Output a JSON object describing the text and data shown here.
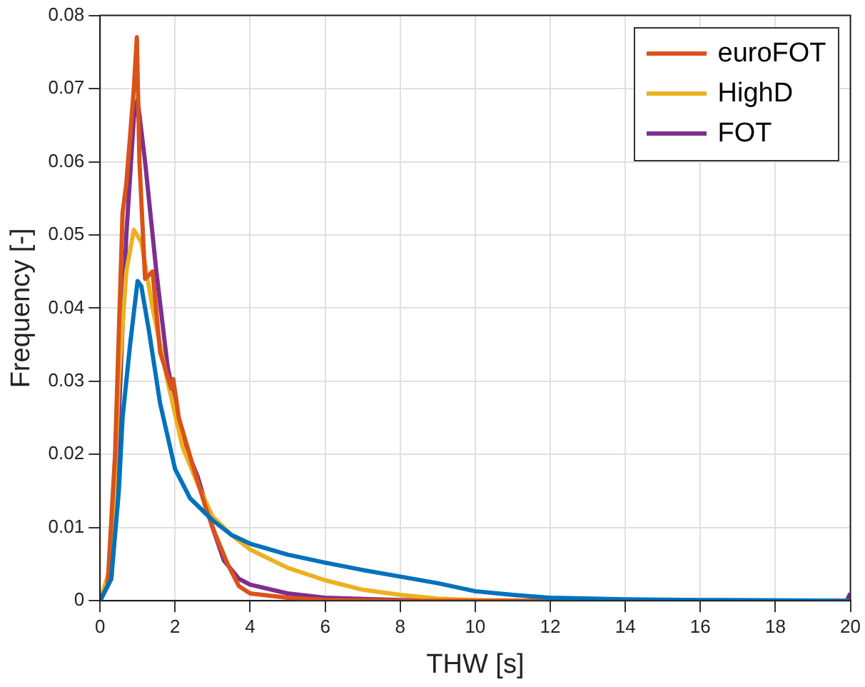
{
  "chart_data": {
    "type": "line",
    "xlabel": "THW [s]",
    "ylabel": "Frequency [-]",
    "xlim": [
      0,
      20
    ],
    "xticks": [
      0,
      2,
      4,
      6,
      8,
      10,
      12,
      14,
      16,
      18,
      20
    ],
    "ylim": [
      0,
      0.08
    ],
    "yticks": [
      0,
      0.01,
      0.02,
      0.03,
      0.04,
      0.05,
      0.06,
      0.07,
      0.08
    ],
    "grid": true,
    "legend": "top right",
    "marker": "none",
    "line_style": "solid",
    "series": [
      {
        "color": "#0072bd",
        "x": [
          0,
          0.3,
          0.5,
          0.6,
          0.8,
          1.0,
          1.1,
          1.3,
          1.6,
          2.0,
          2.4,
          3,
          3.5,
          4,
          5,
          6,
          7,
          8,
          9,
          10,
          11,
          12,
          14,
          16,
          20
        ],
        "values": [
          0,
          0.003,
          0.015,
          0.025,
          0.035,
          0.0437,
          0.043,
          0.037,
          0.027,
          0.018,
          0.014,
          0.011,
          0.009,
          0.0078,
          0.0063,
          0.0052,
          0.0042,
          0.0033,
          0.0024,
          0.0013,
          0.0008,
          0.0004,
          0.0002,
          0.0001,
          0
        ]
      },
      {
        "name": "euroFOT",
        "color": "#d95319",
        "x": [
          0,
          0.2,
          0.4,
          0.6,
          0.7,
          0.9,
          0.98,
          1.05,
          1.2,
          1.4,
          1.6,
          1.9,
          1.95,
          2.1,
          2.5,
          2.8,
          3,
          3.4,
          3.7,
          4,
          5,
          6,
          8,
          20
        ],
        "values": [
          0,
          0.002,
          0.02,
          0.053,
          0.057,
          0.07,
          0.077,
          0.06,
          0.044,
          0.045,
          0.034,
          0.029,
          0.0303,
          0.025,
          0.018,
          0.013,
          0.01,
          0.005,
          0.002,
          0.001,
          0.0004,
          0.0001,
          0,
          0
        ]
      },
      {
        "name": "HighD",
        "color": "#edb120",
        "x": [
          0,
          0.3,
          0.5,
          0.7,
          0.9,
          1.1,
          1.4,
          1.8,
          2.2,
          2.6,
          3,
          3.5,
          4,
          5,
          6,
          7,
          8,
          9,
          10,
          12,
          20
        ],
        "values": [
          0,
          0.005,
          0.03,
          0.045,
          0.0507,
          0.049,
          0.04,
          0.03,
          0.021,
          0.016,
          0.0115,
          0.009,
          0.007,
          0.0045,
          0.0028,
          0.0015,
          0.0008,
          0.0003,
          0.0001,
          0,
          0
        ]
      },
      {
        "name": "FOT",
        "color": "#7e2f8e",
        "x": [
          0,
          0.3,
          0.5,
          0.7,
          0.9,
          1.0,
          1.2,
          1.5,
          1.8,
          2.2,
          2.6,
          3,
          3.3,
          3.7,
          4,
          5,
          6,
          8,
          10,
          19.9,
          20
        ],
        "values": [
          0,
          0.003,
          0.025,
          0.05,
          0.066,
          0.0685,
          0.06,
          0.045,
          0.032,
          0.022,
          0.017,
          0.01,
          0.0055,
          0.003,
          0.0022,
          0.001,
          0.0004,
          0.0001,
          0,
          0,
          0.001
        ]
      }
    ]
  }
}
